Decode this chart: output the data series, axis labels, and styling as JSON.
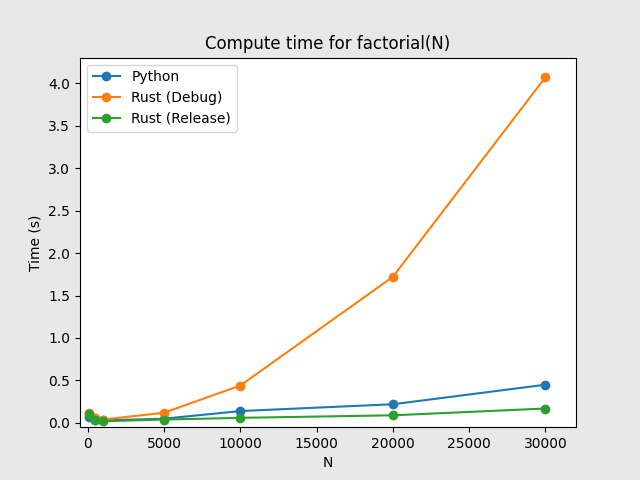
{
  "title": "Compute time for factorial(N)",
  "xlabel": "N",
  "ylabel": "Time (s)",
  "x": [
    100,
    500,
    1000,
    5000,
    10000,
    20000,
    30000
  ],
  "python": [
    0.07,
    0.04,
    0.03,
    0.05,
    0.14,
    0.22,
    0.45
  ],
  "rust_debug": [
    0.12,
    0.06,
    0.04,
    0.12,
    0.44,
    1.72,
    4.07
  ],
  "rust_release": [
    0.1,
    0.04,
    0.02,
    0.04,
    0.06,
    0.09,
    0.17
  ],
  "python_color": "#1f77b4",
  "rust_debug_color": "#ff7f0e",
  "rust_release_color": "#2ca02c",
  "python_label": "Python",
  "rust_debug_label": "Rust (Debug)",
  "rust_release_label": "Rust (Release)",
  "ylim": [
    -0.05,
    4.3
  ],
  "xlim": [
    -500,
    32000
  ],
  "xticks": [
    0,
    5000,
    10000,
    15000,
    20000,
    25000,
    30000
  ],
  "fig_facecolor": "#e8e8e8"
}
